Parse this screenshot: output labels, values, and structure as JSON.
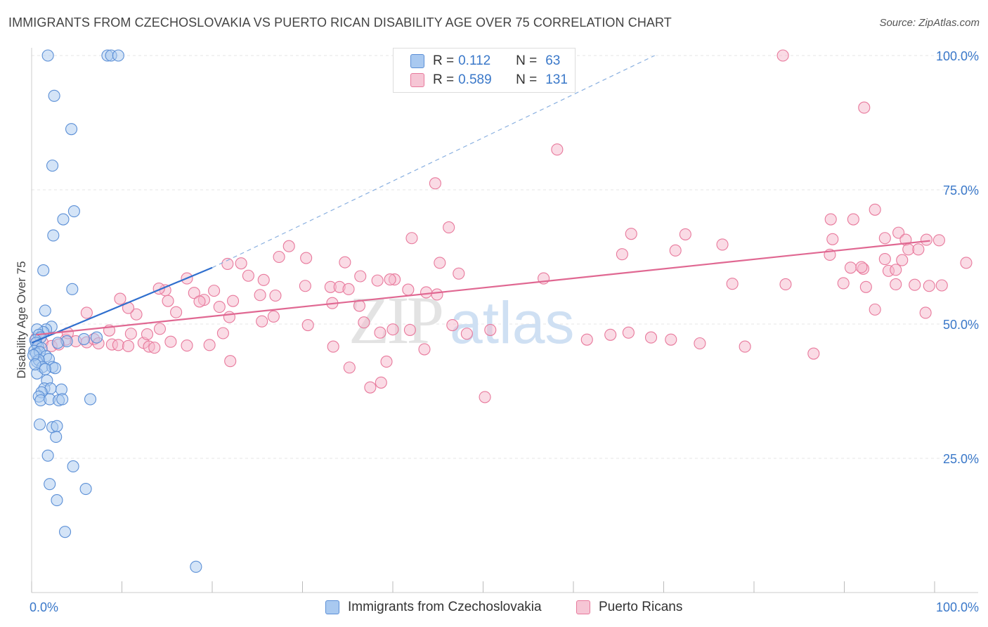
{
  "title": "IMMIGRANTS FROM CZECHOSLOVAKIA VS PUERTO RICAN DISABILITY AGE OVER 75 CORRELATION CHART",
  "source": "Source: ZipAtlas.com",
  "watermark": {
    "zip": "ZIP",
    "atlas": "atlas"
  },
  "legend": {
    "rows": [
      {
        "r_label": "R =",
        "r_value": "0.112",
        "n_label": "N =",
        "n_value": "63"
      },
      {
        "r_label": "R =",
        "r_value": "0.589",
        "n_label": "N =",
        "n_value": "131"
      }
    ]
  },
  "bottom_legend": {
    "czech": "Immigrants from Czechoslovakia",
    "pr": "Puerto Ricans"
  },
  "colors": {
    "blue_fill": "#a9c9f0",
    "blue_stroke": "#5b8fd6",
    "blue_line": "#2f6fce",
    "pink_fill": "#f6b8cb",
    "pink_stroke": "#e8799c",
    "pink_line": "#e06892",
    "axis_label": "#3a78c9"
  },
  "chart_data": {
    "type": "scatter",
    "title": "IMMIGRANTS FROM CZECHOSLOVAKIA VS PUERTO RICAN DISABILITY AGE OVER 75 CORRELATION CHART",
    "xlabel": "",
    "ylabel": "Disability Age Over 75",
    "xlim": [
      0,
      100
    ],
    "ylim": [
      0,
      103
    ],
    "x_tick_labels": [
      "0.0%",
      "100.0%"
    ],
    "y_ticks": [
      25,
      50,
      75,
      100
    ],
    "y_tick_labels": [
      "25.0%",
      "50.0%",
      "75.0%",
      "100.0%"
    ],
    "grid": true,
    "series": [
      {
        "name": "Immigrants from Czechoslovakia",
        "R": 0.112,
        "N": 63,
        "trend": {
          "x": [
            0,
            20
          ],
          "y": [
            46.5,
            60.5
          ]
        },
        "trend_extension": {
          "x": [
            20,
            69
          ],
          "y": [
            60.5,
            100
          ]
        },
        "points": [
          [
            1.8,
            100
          ],
          [
            8.4,
            100
          ],
          [
            8.8,
            100
          ],
          [
            9.6,
            100
          ],
          [
            2.5,
            92.5
          ],
          [
            4.4,
            86.3
          ],
          [
            2.3,
            79.5
          ],
          [
            4.7,
            71
          ],
          [
            3.5,
            69.5
          ],
          [
            2.4,
            66.5
          ],
          [
            1.3,
            60
          ],
          [
            4.5,
            56.5
          ],
          [
            1.5,
            52.5
          ],
          [
            2.2,
            49.5
          ],
          [
            1.6,
            49
          ],
          [
            1.3,
            48.5
          ],
          [
            0.6,
            49
          ],
          [
            0.8,
            48
          ],
          [
            1.0,
            47.5
          ],
          [
            0.4,
            47
          ],
          [
            0.5,
            46.5
          ],
          [
            0.7,
            45.8
          ],
          [
            1.1,
            45.5
          ],
          [
            0.3,
            45
          ],
          [
            0.5,
            44.5
          ],
          [
            0.9,
            44.8
          ],
          [
            1.6,
            44
          ],
          [
            1.9,
            43.5
          ],
          [
            0.6,
            43
          ],
          [
            0.8,
            43.3
          ],
          [
            1.2,
            42
          ],
          [
            2.3,
            42
          ],
          [
            2.6,
            41.8
          ],
          [
            0.6,
            40.8
          ],
          [
            1.7,
            39.5
          ],
          [
            1.4,
            38
          ],
          [
            3.3,
            37.8
          ],
          [
            2.1,
            38
          ],
          [
            1.1,
            37.3
          ],
          [
            0.8,
            36.5
          ],
          [
            1.0,
            35.8
          ],
          [
            2.0,
            36
          ],
          [
            3.0,
            35.8
          ],
          [
            3.4,
            36
          ],
          [
            6.5,
            36
          ],
          [
            0.9,
            31.3
          ],
          [
            2.3,
            30.8
          ],
          [
            2.8,
            31
          ],
          [
            2.7,
            29
          ],
          [
            1.8,
            25.5
          ],
          [
            4.6,
            23.5
          ],
          [
            2.0,
            20.2
          ],
          [
            6.0,
            19.3
          ],
          [
            2.8,
            17.2
          ],
          [
            3.7,
            11.3
          ],
          [
            18.2,
            4.8
          ],
          [
            7.2,
            47.5
          ],
          [
            5.8,
            47.2
          ],
          [
            3.9,
            46.8
          ],
          [
            2.9,
            46.5
          ],
          [
            0.2,
            44.2
          ],
          [
            0.4,
            42.5
          ],
          [
            1.5,
            41.6
          ]
        ]
      },
      {
        "name": "Puerto Ricans",
        "R": 0.589,
        "N": 131,
        "trend": {
          "x": [
            0.5,
            99.5
          ],
          "y": [
            48,
            65.5
          ]
        },
        "points": [
          [
            83.2,
            100
          ],
          [
            92.2,
            90.3
          ],
          [
            58.2,
            82.5
          ],
          [
            44.7,
            76.2
          ],
          [
            93.4,
            71.3
          ],
          [
            88.5,
            69.5
          ],
          [
            91.0,
            69.5
          ],
          [
            46.2,
            68
          ],
          [
            72.4,
            66.7
          ],
          [
            66.4,
            66.8
          ],
          [
            42.1,
            66
          ],
          [
            88.7,
            65.8
          ],
          [
            94.5,
            66
          ],
          [
            96.0,
            67
          ],
          [
            96.8,
            65.7
          ],
          [
            99.1,
            65.7
          ],
          [
            100.5,
            65.6
          ],
          [
            76.5,
            64.8
          ],
          [
            28.5,
            64.5
          ],
          [
            71.3,
            63.7
          ],
          [
            97.1,
            63.9
          ],
          [
            98.2,
            63.9
          ],
          [
            65.4,
            63
          ],
          [
            88.4,
            62.9
          ],
          [
            27.4,
            62.5
          ],
          [
            30.4,
            62.3
          ],
          [
            34.7,
            61.5
          ],
          [
            45.2,
            61.4
          ],
          [
            23.2,
            61.3
          ],
          [
            21.7,
            61.2
          ],
          [
            94.5,
            62.1
          ],
          [
            96.4,
            61.9
          ],
          [
            103.5,
            61.4
          ],
          [
            90.7,
            60.5
          ],
          [
            92.1,
            60.3
          ],
          [
            94.9,
            59.9
          ],
          [
            95.7,
            60.1
          ],
          [
            91.9,
            60.6
          ],
          [
            36.4,
            58.9
          ],
          [
            38.3,
            58.1
          ],
          [
            40.2,
            58.3
          ],
          [
            39.7,
            58.3
          ],
          [
            17.2,
            58.5
          ],
          [
            24.0,
            59
          ],
          [
            25.7,
            58.2
          ],
          [
            89.9,
            57.6
          ],
          [
            83.5,
            57.4
          ],
          [
            56.7,
            58.5
          ],
          [
            47.3,
            59.4
          ],
          [
            77.6,
            57.5
          ],
          [
            95.7,
            57.4
          ],
          [
            97.8,
            57.3
          ],
          [
            41.7,
            56.4
          ],
          [
            92.4,
            56.9
          ],
          [
            100.8,
            57.2
          ],
          [
            99.4,
            57.1
          ],
          [
            30.3,
            57.1
          ],
          [
            33.1,
            56.9
          ],
          [
            34.1,
            56.9
          ],
          [
            35.1,
            56.5
          ],
          [
            18.0,
            55.8
          ],
          [
            20.2,
            56.2
          ],
          [
            44.9,
            55.5
          ],
          [
            14.8,
            56.3
          ],
          [
            14.1,
            56.6
          ],
          [
            9.8,
            54.7
          ],
          [
            19.1,
            54.5
          ],
          [
            25.3,
            55.4
          ],
          [
            27.0,
            55.3
          ],
          [
            11.6,
            51.8
          ],
          [
            15.1,
            54.3
          ],
          [
            18.6,
            54.2
          ],
          [
            22.3,
            54.3
          ],
          [
            33.3,
            53.9
          ],
          [
            20.8,
            53.2
          ],
          [
            26.8,
            51.4
          ],
          [
            25.5,
            50.5
          ],
          [
            46.6,
            49.8
          ],
          [
            36.8,
            50.3
          ],
          [
            16.0,
            52.2
          ],
          [
            14.2,
            49.1
          ],
          [
            21.9,
            51.3
          ],
          [
            36.3,
            53.4
          ],
          [
            43.7,
            55.9
          ],
          [
            21.2,
            48.3
          ],
          [
            30.6,
            49.8
          ],
          [
            38.6,
            48.4
          ],
          [
            41.9,
            48.9
          ],
          [
            48.2,
            48.2
          ],
          [
            50.8,
            48.9
          ],
          [
            61.5,
            47.1
          ],
          [
            64.1,
            48
          ],
          [
            68.6,
            47.5
          ],
          [
            66.1,
            48.4
          ],
          [
            70.8,
            47.1
          ],
          [
            74.0,
            46.4
          ],
          [
            79.0,
            45.8
          ],
          [
            86.6,
            44.5
          ],
          [
            93.4,
            52.7
          ],
          [
            99.0,
            52.1
          ],
          [
            3.8,
            47.1
          ],
          [
            4.9,
            46.8
          ],
          [
            6.1,
            46.6
          ],
          [
            6.9,
            47.2
          ],
          [
            7.4,
            46.4
          ],
          [
            8.9,
            46.2
          ],
          [
            9.6,
            46.1
          ],
          [
            10.7,
            45.9
          ],
          [
            12.4,
            46.5
          ],
          [
            13.0,
            45.8
          ],
          [
            13.6,
            45.6
          ],
          [
            17.2,
            46
          ],
          [
            1.2,
            46.6
          ],
          [
            2.2,
            45.9
          ],
          [
            0.5,
            47.3
          ],
          [
            3.0,
            46.2
          ],
          [
            10.7,
            53
          ],
          [
            8.6,
            48.8
          ],
          [
            11.0,
            48.2
          ],
          [
            12.8,
            48.1
          ],
          [
            15.4,
            46.7
          ],
          [
            19.7,
            46.1
          ],
          [
            22.0,
            43.1
          ],
          [
            33.4,
            45.8
          ],
          [
            35.2,
            41.9
          ],
          [
            37.5,
            38.2
          ],
          [
            38.7,
            39.1
          ],
          [
            39.3,
            43
          ],
          [
            40.0,
            49
          ],
          [
            43.5,
            45.3
          ],
          [
            50.2,
            36.4
          ],
          [
            6.1,
            52.1
          ],
          [
            4.0,
            48.3
          ]
        ]
      }
    ]
  }
}
